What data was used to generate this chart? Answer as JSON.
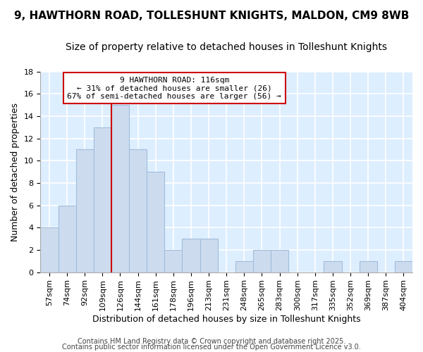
{
  "title1": "9, HAWTHORN ROAD, TOLLESHUNT KNIGHTS, MALDON, CM9 8WB",
  "title2": "Size of property relative to detached houses in Tolleshunt Knights",
  "xlabel": "Distribution of detached houses by size in Tolleshunt Knights",
  "ylabel": "Number of detached properties",
  "categories": [
    "57sqm",
    "74sqm",
    "92sqm",
    "109sqm",
    "126sqm",
    "144sqm",
    "161sqm",
    "178sqm",
    "196sqm",
    "213sqm",
    "231sqm",
    "248sqm",
    "265sqm",
    "283sqm",
    "300sqm",
    "317sqm",
    "335sqm",
    "352sqm",
    "369sqm",
    "387sqm",
    "404sqm"
  ],
  "values": [
    4,
    6,
    11,
    13,
    15,
    11,
    9,
    2,
    3,
    3,
    0,
    1,
    2,
    2,
    0,
    0,
    1,
    0,
    1,
    0,
    1
  ],
  "bar_color": "#ccdcee",
  "bar_edge_color": "#a0bcdc",
  "ylim": [
    0,
    18
  ],
  "yticks": [
    0,
    2,
    4,
    6,
    8,
    10,
    12,
    14,
    16,
    18
  ],
  "red_line_x": 3.5,
  "annotation_text": "9 HAWTHORN ROAD: 116sqm\n← 31% of detached houses are smaller (26)\n67% of semi-detached houses are larger (56) →",
  "annotation_box_color": "white",
  "annotation_box_edge_color": "#cc0000",
  "red_line_color": "#cc0000",
  "plot_bg_color": "#ddeeff",
  "figure_bg_color": "#ffffff",
  "grid_color": "#ffffff",
  "footer1": "Contains HM Land Registry data © Crown copyright and database right 2025.",
  "footer2": "Contains public sector information licensed under the Open Government Licence v3.0.",
  "title1_fontsize": 11,
  "title2_fontsize": 10,
  "xlabel_fontsize": 9,
  "ylabel_fontsize": 9,
  "tick_fontsize": 8,
  "annotation_fontsize": 8,
  "footer_fontsize": 7
}
